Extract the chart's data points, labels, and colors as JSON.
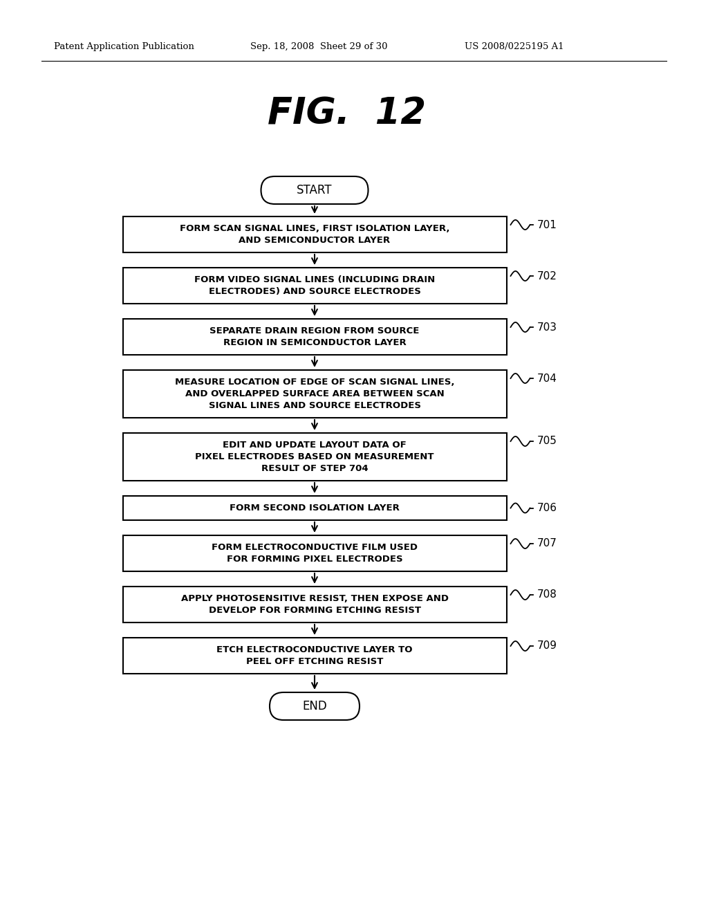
{
  "title": "FIG.  12",
  "header_left": "Patent Application Publication",
  "header_mid": "Sep. 18, 2008  Sheet 29 of 30",
  "header_right": "US 2008/0225195 A1",
  "start_label": "START",
  "end_label": "END",
  "steps": [
    {
      "id": "701",
      "lines": [
        "FORM SCAN SIGNAL LINES, FIRST ISOLATION LAYER,",
        "AND SEMICONDUCTOR LAYER"
      ],
      "nlines": 2
    },
    {
      "id": "702",
      "lines": [
        "FORM VIDEO SIGNAL LINES (INCLUDING DRAIN",
        "ELECTRODES) AND SOURCE ELECTRODES"
      ],
      "nlines": 2
    },
    {
      "id": "703",
      "lines": [
        "SEPARATE DRAIN REGION FROM SOURCE",
        "REGION IN SEMICONDUCTOR LAYER"
      ],
      "nlines": 2
    },
    {
      "id": "704",
      "lines": [
        "MEASURE LOCATION OF EDGE OF SCAN SIGNAL LINES,",
        "AND OVERLAPPED SURFACE AREA BETWEEN SCAN",
        "SIGNAL LINES AND SOURCE ELECTRODES"
      ],
      "nlines": 3
    },
    {
      "id": "705",
      "lines": [
        "EDIT AND UPDATE LAYOUT DATA OF",
        "PIXEL ELECTRODES BASED ON MEASUREMENT",
        "RESULT OF STEP 704"
      ],
      "nlines": 3
    },
    {
      "id": "706",
      "lines": [
        "FORM SECOND ISOLATION LAYER"
      ],
      "nlines": 1
    },
    {
      "id": "707",
      "lines": [
        "FORM ELECTROCONDUCTIVE FILM USED",
        "FOR FORMING PIXEL ELECTRODES"
      ],
      "nlines": 2
    },
    {
      "id": "708",
      "lines": [
        "APPLY PHOTOSENSITIVE RESIST, THEN EXPOSE AND",
        "DEVELOP FOR FORMING ETCHING RESIST"
      ],
      "nlines": 2
    },
    {
      "id": "709",
      "lines": [
        "ETCH ELECTROCONDUCTIVE LAYER TO",
        "PEEL OFF ETCHING RESIST"
      ],
      "nlines": 2
    }
  ],
  "bg_color": "#ffffff",
  "box_fill": "#ffffff",
  "box_edge": "#000000",
  "text_color": "#000000",
  "fig_width": 10.24,
  "fig_height": 13.2,
  "dpi": 100
}
